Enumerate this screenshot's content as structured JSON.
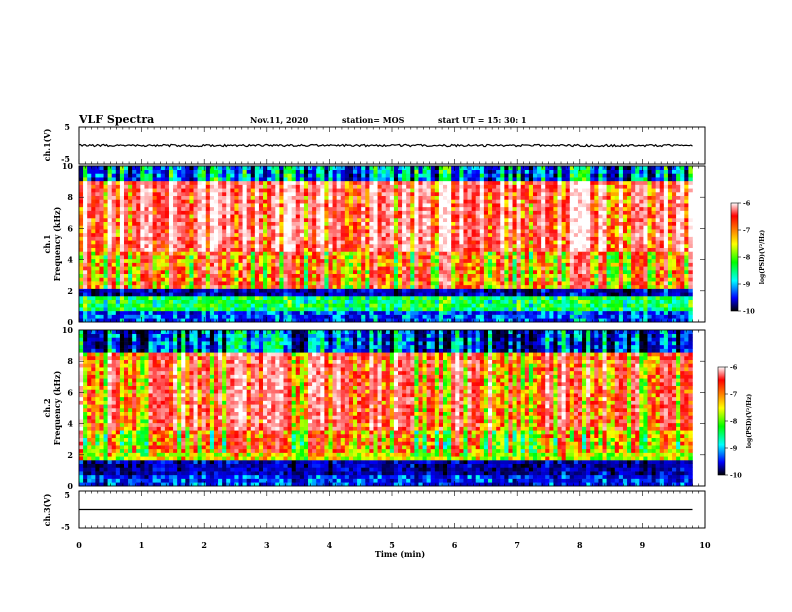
{
  "header": {
    "title": "VLF Spectra",
    "date": "Nov.11, 2020",
    "station": "station= MOS",
    "start": "start  UT =   15: 30: 1"
  },
  "panels": {
    "ch1_wave_label": "ch.1(V)",
    "ch3_wave_label": "ch.3(V)",
    "ch1_spec_label": "ch.1",
    "ch2_spec_label": "ch.2",
    "freq_label": "Frequency  (kHz)",
    "wave_ticks": [
      "5",
      "-5"
    ],
    "freq_ticks": [
      "0",
      "2",
      "4",
      "6",
      "8",
      "10"
    ]
  },
  "colorbar": {
    "label": "log(PSD)(V²/Hz)",
    "ticks": [
      "-6",
      "-7",
      "-8",
      "-9",
      "-10"
    ],
    "colors": [
      "#ffffff",
      "#ff0000",
      "#ffff00",
      "#00ff00",
      "#00ffff",
      "#0000ff",
      "#000000"
    ]
  },
  "x_axis": {
    "label": "Time  (min)",
    "ticks": [
      "0",
      "1",
      "2",
      "3",
      "4",
      "5",
      "6",
      "7",
      "8",
      "9",
      "10"
    ]
  },
  "chart_data": {
    "type": "heatmap",
    "title": "VLF Spectra",
    "xlabel": "Time  (min)",
    "ylabel": "Frequency  (kHz)",
    "xlim": [
      0,
      10
    ],
    "ylim": [
      0,
      10
    ],
    "wave_ylim": [
      -5,
      5
    ],
    "data_end_min": 9.8,
    "color_scale": {
      "label": "log(PSD)(V²/Hz)",
      "range": [
        -10,
        -6
      ]
    },
    "series": [
      {
        "name": "ch.1",
        "band_profile": [
          {
            "f_khz": [
              0,
              0.6
            ],
            "log_psd": -9.2
          },
          {
            "f_khz": [
              0.6,
              1.6
            ],
            "log_psd": -8.5
          },
          {
            "f_khz": [
              1.6,
              2.2
            ],
            "log_psd": -9.6
          },
          {
            "f_khz": [
              2.2,
              4.5
            ],
            "log_psd": -7.8
          },
          {
            "f_khz": [
              4.5,
              9.0
            ],
            "log_psd": -7.2
          },
          {
            "f_khz": [
              9.0,
              10
            ],
            "log_psd": -9.3
          }
        ]
      },
      {
        "name": "ch.2",
        "band_profile": [
          {
            "f_khz": [
              0,
              0.6
            ],
            "log_psd": -9.3
          },
          {
            "f_khz": [
              0.6,
              1.6
            ],
            "log_psd": -9.6
          },
          {
            "f_khz": [
              1.6,
              3.5
            ],
            "log_psd": -8.0
          },
          {
            "f_khz": [
              3.5,
              8.5
            ],
            "log_psd": -7.5
          },
          {
            "f_khz": [
              8.5,
              10
            ],
            "log_psd": -9.5
          }
        ]
      }
    ],
    "waveforms": [
      {
        "name": "ch.1(V)",
        "baseline_v": 0,
        "noise_v": 0.3
      },
      {
        "name": "ch.3(V)",
        "baseline_v": 0,
        "noise_v": 0
      }
    ]
  }
}
